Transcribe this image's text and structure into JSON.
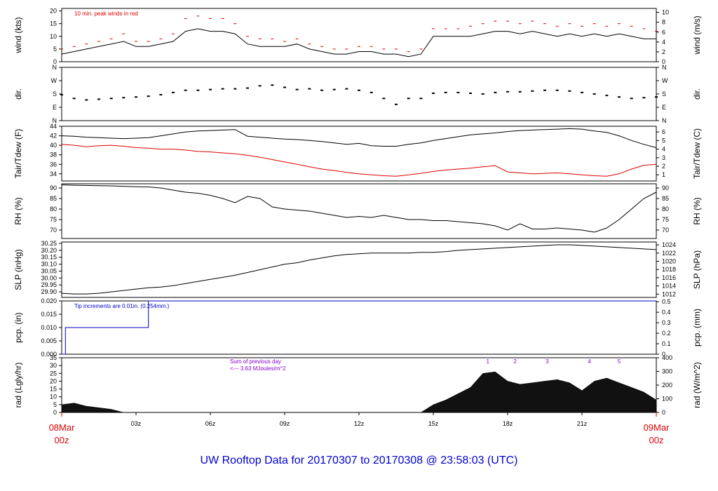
{
  "title": "UW Rooftop Data for 20170307  to  20170308 @ 23:58:03  (UTC)",
  "colors": {
    "trace": "#000000",
    "red": "#dd0000",
    "blue": "#0000cc",
    "purple": "#8800cc"
  },
  "chart_data": [
    {
      "id": "wind",
      "type": "line",
      "ylabel": "wind (kts)",
      "ylabel_right": "wind (m/s)",
      "ylim": [
        0,
        21
      ],
      "yticks": [
        "0",
        "5",
        "10",
        "15",
        "20"
      ],
      "ytick_values": [
        0,
        5,
        10,
        15,
        20
      ],
      "right_ylim": [
        0,
        10.8
      ],
      "right_yticks": [
        "0",
        "2",
        "4",
        "6",
        "8",
        "10"
      ],
      "right_ytick_values": [
        0,
        2,
        4,
        6,
        8,
        10
      ],
      "annotation": "10 min. peak winds in red",
      "x_hours": [
        0,
        0.5,
        1,
        1.5,
        2,
        2.5,
        3,
        3.5,
        4,
        4.5,
        5,
        5.5,
        6,
        6.5,
        7,
        7.5,
        8,
        8.5,
        9,
        9.5,
        10,
        10.5,
        11,
        11.5,
        12,
        12.5,
        13,
        13.5,
        14,
        14.5,
        15,
        15.5,
        16,
        16.5,
        17,
        17.5,
        18,
        18.5,
        19,
        19.5,
        20,
        20.5,
        21,
        21.5,
        22,
        22.5,
        23,
        23.5,
        24
      ],
      "values": [
        3,
        4,
        5,
        6,
        7,
        8,
        6,
        6,
        7,
        8,
        12,
        13,
        12,
        12,
        11,
        7,
        6,
        6,
        6,
        7,
        5,
        4,
        3,
        3,
        4,
        4,
        3,
        3,
        2,
        3,
        10,
        10,
        10,
        10,
        11,
        12,
        12,
        11,
        12,
        11,
        10,
        11,
        10,
        11,
        10,
        11,
        10,
        9,
        9
      ],
      "peak_values": [
        5,
        6,
        7,
        8,
        9,
        11,
        8,
        8,
        9,
        11,
        17,
        18,
        17,
        17,
        15,
        10,
        9,
        9,
        8,
        9,
        7,
        6,
        5,
        5,
        6,
        6,
        5,
        5,
        4,
        5,
        13,
        13,
        13,
        14,
        15,
        16,
        16,
        15,
        16,
        15,
        14,
        15,
        14,
        15,
        14,
        15,
        14,
        13,
        12
      ]
    },
    {
      "id": "dir",
      "type": "scatter",
      "ylabel": "dir.",
      "ylabel_right": "dir.",
      "ylim": [
        0,
        360
      ],
      "yticks": [
        "N",
        "E",
        "S",
        "W",
        "N"
      ],
      "ytick_values": [
        0,
        90,
        180,
        270,
        360
      ],
      "right_yticks": [
        "N",
        "E",
        "S",
        "W",
        "N"
      ],
      "x_hours": [
        0,
        0.5,
        1,
        1.5,
        2,
        2.5,
        3,
        3.5,
        4,
        4.5,
        5,
        5.5,
        6,
        6.5,
        7,
        7.5,
        8,
        8.5,
        9,
        9.5,
        10,
        10.5,
        11,
        11.5,
        12,
        12.5,
        13,
        13.5,
        14,
        14.5,
        15,
        15.5,
        16,
        16.5,
        17,
        17.5,
        18,
        18.5,
        19,
        19.5,
        20,
        20.5,
        21,
        21.5,
        22,
        22.5,
        23,
        23.5,
        24
      ],
      "values": [
        175,
        150,
        140,
        145,
        150,
        155,
        160,
        165,
        175,
        190,
        205,
        205,
        210,
        215,
        215,
        220,
        235,
        240,
        225,
        210,
        215,
        205,
        210,
        215,
        205,
        190,
        150,
        110,
        150,
        150,
        185,
        190,
        190,
        185,
        180,
        190,
        195,
        195,
        200,
        205,
        205,
        200,
        190,
        180,
        170,
        160,
        150,
        155,
        160
      ]
    },
    {
      "id": "temp",
      "type": "line",
      "ylabel": "Tair/Tdew (F)",
      "ylabel_right": "Tair/Tdew (C)",
      "ylim": [
        32.5,
        44
      ],
      "yticks": [
        "34",
        "36",
        "38",
        "40",
        "42",
        "44"
      ],
      "ytick_values": [
        34,
        36,
        38,
        40,
        42,
        44
      ],
      "right_ylim": [
        0.28,
        6.67
      ],
      "right_yticks": [
        "1",
        "2",
        "3",
        "4",
        "5",
        "6"
      ],
      "right_ytick_values": [
        1,
        2,
        3,
        4,
        5,
        6
      ],
      "x_hours": [
        0,
        0.5,
        1,
        1.5,
        2,
        2.5,
        3,
        3.5,
        4,
        4.5,
        5,
        5.5,
        6,
        6.5,
        7,
        7.5,
        8,
        8.5,
        9,
        9.5,
        10,
        10.5,
        11,
        11.5,
        12,
        12.5,
        13,
        13.5,
        14,
        14.5,
        15,
        15.5,
        16,
        16.5,
        17,
        17.5,
        18,
        18.5,
        19,
        19.5,
        20,
        20.5,
        21,
        21.5,
        22,
        22.5,
        23,
        23.5,
        24
      ],
      "series": [
        {
          "values": [
            42,
            41.9,
            41.7,
            41.6,
            41.5,
            41.4,
            41.5,
            41.6,
            42,
            42.4,
            42.8,
            43,
            43.1,
            43.2,
            43.3,
            41.9,
            41.7,
            41.5,
            41.3,
            41.2,
            41,
            40.8,
            40.5,
            40.2,
            40.4,
            39.9,
            39.8,
            39.8,
            40.2,
            40.5,
            41,
            41.4,
            41.8,
            42.2,
            42.4,
            42.6,
            42.9,
            43.1,
            43.2,
            43.3,
            43.4,
            43.5,
            43.4,
            43,
            42.7,
            42,
            41,
            40.2,
            39.5
          ],
          "color": "#000000"
        },
        {
          "values": [
            40.2,
            40,
            39.7,
            39.9,
            40,
            39.8,
            39.5,
            39.4,
            39.2,
            39.2,
            39,
            38.7,
            38.6,
            38.4,
            38.2,
            37.9,
            37.5,
            37,
            36.5,
            36,
            35.5,
            35,
            34.7,
            34.3,
            34,
            33.8,
            33.6,
            33.5,
            33.8,
            34.1,
            34.5,
            34.8,
            35,
            35.2,
            35.5,
            35.7,
            34.4,
            34.2,
            34,
            34.1,
            34.2,
            34,
            33.8,
            33.6,
            33.5,
            34,
            35,
            35.8,
            36
          ],
          "color": "#dd0000"
        }
      ]
    },
    {
      "id": "rh",
      "type": "line",
      "ylabel": "RH (%)",
      "ylabel_right": "RH (%)",
      "ylim": [
        66,
        92
      ],
      "yticks": [
        "70",
        "75",
        "80",
        "85",
        "90"
      ],
      "ytick_values": [
        70,
        75,
        80,
        85,
        90
      ],
      "right_ylim": [
        66,
        92
      ],
      "right_yticks": [
        "70",
        "75",
        "80",
        "85",
        "90"
      ],
      "right_ytick_values": [
        70,
        75,
        80,
        85,
        90
      ],
      "x_hours": [
        0,
        0.5,
        1,
        1.5,
        2,
        2.5,
        3,
        3.5,
        4,
        4.5,
        5,
        5.5,
        6,
        6.5,
        7,
        7.5,
        8,
        8.5,
        9,
        9.5,
        10,
        10.5,
        11,
        11.5,
        12,
        12.5,
        13,
        13.5,
        14,
        14.5,
        15,
        15.5,
        16,
        16.5,
        17,
        17.5,
        18,
        18.5,
        19,
        19.5,
        20,
        20.5,
        21,
        21.5,
        22,
        22.5,
        23,
        23.5,
        24
      ],
      "values": [
        91.5,
        91.3,
        91.2,
        91.1,
        91,
        90.8,
        90.6,
        90.5,
        90,
        89,
        88,
        87.5,
        86.5,
        85,
        83,
        86,
        85,
        81,
        80,
        79.5,
        79,
        78,
        77,
        76,
        76.5,
        76,
        77,
        76,
        75,
        75,
        74.5,
        74.5,
        74,
        73.5,
        73,
        72,
        70,
        73,
        70.5,
        70.5,
        71,
        70.5,
        70,
        69,
        71,
        75,
        80,
        85,
        88
      ]
    },
    {
      "id": "slp",
      "type": "line",
      "ylabel": "SLP (inHg)",
      "ylabel_right": "SLP (hPa)",
      "ylim": [
        29.86,
        30.26
      ],
      "yticks": [
        "29.90",
        "29.95",
        "30.00",
        "30.05",
        "30.10",
        "30.15",
        "30.20",
        "30.25"
      ],
      "ytick_values": [
        29.9,
        29.95,
        30,
        30.05,
        30.1,
        30.15,
        30.2,
        30.25
      ],
      "right_ylim": [
        1011.2,
        1024.7
      ],
      "right_yticks": [
        "1012",
        "1014",
        "1016",
        "1018",
        "1020",
        "1022",
        "1024"
      ],
      "right_ytick_values": [
        1012,
        1014,
        1016,
        1018,
        1020,
        1022,
        1024
      ],
      "x_hours": [
        0,
        0.5,
        1,
        1.5,
        2,
        2.5,
        3,
        3.5,
        4,
        4.5,
        5,
        5.5,
        6,
        6.5,
        7,
        7.5,
        8,
        8.5,
        9,
        9.5,
        10,
        10.5,
        11,
        11.5,
        12,
        12.5,
        13,
        13.5,
        14,
        14.5,
        15,
        15.5,
        16,
        16.5,
        17,
        17.5,
        18,
        18.5,
        19,
        19.5,
        20,
        20.5,
        21,
        21.5,
        22,
        22.5,
        23,
        23.5,
        24
      ],
      "values": [
        29.89,
        29.885,
        29.885,
        29.89,
        29.9,
        29.91,
        29.92,
        29.93,
        29.935,
        29.945,
        29.96,
        29.975,
        29.99,
        30.005,
        30.02,
        30.04,
        30.06,
        30.08,
        30.1,
        30.11,
        30.13,
        30.145,
        30.16,
        30.17,
        30.175,
        30.18,
        30.18,
        30.18,
        30.18,
        30.185,
        30.185,
        30.19,
        30.2,
        30.205,
        30.21,
        30.215,
        30.22,
        30.225,
        30.23,
        30.235,
        30.24,
        30.24,
        30.235,
        30.23,
        30.225,
        30.22,
        30.215,
        30.21,
        30.205
      ]
    },
    {
      "id": "pcp",
      "type": "line",
      "ylabel": "pcp. (in)",
      "ylabel_right": "pcp. (mm)",
      "ylim": [
        0,
        0.02
      ],
      "yticks": [
        "0.000",
        "0.005",
        "0.010",
        "0.015",
        "0.020"
      ],
      "ytick_values": [
        0,
        0.005,
        0.01,
        0.015,
        0.02
      ],
      "right_ylim": [
        0,
        0.508
      ],
      "right_yticks": [
        "0",
        "0.1",
        "0.2",
        "0.3",
        "0.4",
        "0.5"
      ],
      "right_ytick_values": [
        0,
        0.1,
        0.2,
        0.3,
        0.4,
        0.5
      ],
      "annotation": "Tip increments are 0.01in. (0.254mm.)",
      "x_hours": [
        0,
        0.15,
        0.15,
        3.5,
        3.5,
        24
      ],
      "values": [
        0,
        0,
        0.01,
        0.01,
        0.02,
        0.02
      ]
    },
    {
      "id": "rad",
      "type": "area",
      "ylabel": "rad (Lgly/hr)",
      "ylabel_right": "rad (W/m^2)",
      "ylim": [
        0,
        35
      ],
      "yticks": [
        "0",
        "5",
        "10",
        "15",
        "20",
        "25",
        "30",
        "35"
      ],
      "ytick_values": [
        0,
        5,
        10,
        15,
        20,
        25,
        30,
        35
      ],
      "right_ylim": [
        0,
        400
      ],
      "right_yticks": [
        "0",
        "100",
        "200",
        "300",
        "400"
      ],
      "right_ytick_values": [
        0,
        100,
        200,
        300,
        400
      ],
      "annotation_lines": [
        "Sum of previous day",
        "<--- 3.63 MJoules/m^2"
      ],
      "markers": [
        "1",
        "2",
        "3",
        "4",
        "5"
      ],
      "marker_hours": [
        17.2,
        18.3,
        19.6,
        21.3,
        22.5
      ],
      "x_hours": [
        0,
        0.5,
        1,
        1.5,
        2,
        2.5,
        3,
        3.5,
        4,
        4.5,
        5,
        5.5,
        6,
        6.5,
        7,
        7.5,
        8,
        8.5,
        9,
        9.5,
        10,
        10.5,
        11,
        11.5,
        12,
        12.5,
        13,
        13.5,
        14,
        14.5,
        15,
        15.5,
        16,
        16.5,
        17,
        17.5,
        18,
        18.5,
        19,
        19.5,
        20,
        20.5,
        21,
        21.5,
        22,
        22.5,
        23,
        23.5,
        24
      ],
      "values": [
        5,
        6,
        4,
        3,
        2,
        0,
        0,
        0,
        0,
        0,
        0,
        0,
        0,
        0,
        0,
        0,
        0,
        0,
        0,
        0,
        0,
        0,
        0,
        0,
        0,
        0,
        0,
        0,
        0,
        0,
        5,
        8,
        12,
        16,
        25,
        26,
        20,
        18,
        19,
        20,
        21,
        19,
        14,
        20,
        22,
        19,
        16,
        13,
        8
      ]
    }
  ],
  "x_axis": {
    "ticks": [
      "03z",
      "06z",
      "09z",
      "12z",
      "15z",
      "18z",
      "21z"
    ],
    "tick_hours": [
      3,
      6,
      9,
      12,
      15,
      18,
      21
    ],
    "left_label": [
      "08Mar",
      "00z"
    ],
    "right_label": [
      "09Mar",
      "00z"
    ]
  }
}
